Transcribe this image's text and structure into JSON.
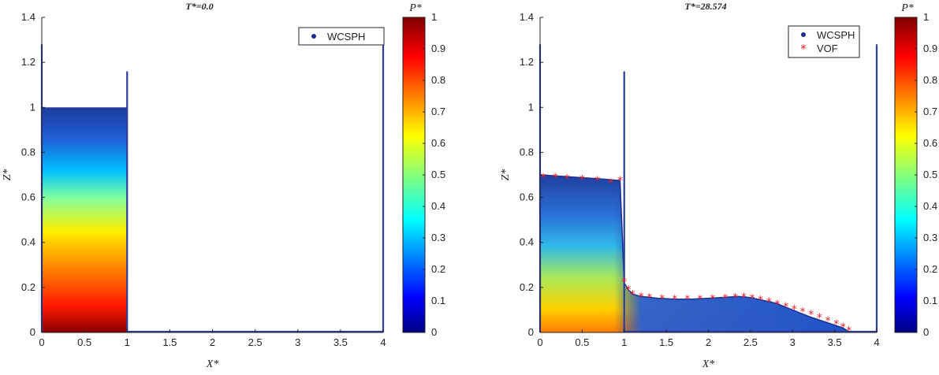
{
  "chart_data": [
    {
      "type": "scatter",
      "title": "T*=0.0",
      "xlabel": "X*",
      "ylabel": "Z*",
      "xlim": [
        0,
        4
      ],
      "ylim": [
        0,
        1.4
      ],
      "xticks": [
        "0",
        "0.5",
        "1",
        "1.5",
        "2",
        "2.5",
        "3",
        "3.5",
        "4"
      ],
      "yticks": [
        "0",
        "0.2",
        "0.4",
        "0.6",
        "0.8",
        "1",
        "1.2",
        "1.4"
      ],
      "grid": false,
      "legend_position": "top-right",
      "legend": [
        "WCSPH"
      ],
      "colorbar": {
        "label": "P*",
        "range": [
          0,
          1
        ],
        "ticks": [
          "0",
          "0.1",
          "0.2",
          "0.3",
          "0.4",
          "0.5",
          "0.6",
          "0.7",
          "0.8",
          "0.9",
          "1"
        ],
        "colormap": "jet"
      },
      "walls": [
        {
          "x": 0,
          "z": [
            0,
            1.28
          ]
        },
        {
          "x": 1,
          "z": [
            0,
            1.16
          ]
        },
        {
          "x": 4,
          "z": [
            0,
            1.28
          ]
        }
      ],
      "fluid": {
        "x": [
          0,
          1
        ],
        "height": 1.0,
        "pressure_field": "hydrostatic"
      }
    },
    {
      "type": "scatter",
      "title": "T*=28.574",
      "xlabel": "X*",
      "ylabel": "Z*",
      "xlim": [
        0,
        4
      ],
      "ylim": [
        0,
        1.4
      ],
      "xticks": [
        "0",
        "0.5",
        "1",
        "1.5",
        "2",
        "2.5",
        "3",
        "3.5",
        "4"
      ],
      "yticks": [
        "0",
        "0.2",
        "0.4",
        "0.6",
        "0.8",
        "1",
        "1.2",
        "1.4"
      ],
      "grid": false,
      "legend_position": "top-right",
      "legend": [
        "WCSPH",
        "VOF"
      ],
      "colorbar": {
        "label": "P*",
        "range": [
          0,
          1
        ],
        "ticks": [
          "0",
          "0.1",
          "0.2",
          "0.3",
          "0.4",
          "0.5",
          "0.6",
          "0.7",
          "0.8",
          "0.9",
          "1"
        ],
        "colormap": "jet"
      },
      "walls": [
        {
          "x": 0,
          "z": [
            0,
            1.28
          ]
        },
        {
          "x": 1,
          "z": [
            0,
            1.16
          ]
        },
        {
          "x": 4,
          "z": [
            0,
            1.28
          ]
        }
      ],
      "free_surface": [
        [
          0,
          0.7
        ],
        [
          0.2,
          0.695
        ],
        [
          0.4,
          0.69
        ],
        [
          0.6,
          0.685
        ],
        [
          0.8,
          0.68
        ],
        [
          0.95,
          0.675
        ],
        [
          1.0,
          0.22
        ],
        [
          1.05,
          0.19
        ],
        [
          1.1,
          0.17
        ],
        [
          1.2,
          0.16
        ],
        [
          1.4,
          0.152
        ],
        [
          1.6,
          0.148
        ],
        [
          1.8,
          0.148
        ],
        [
          2.0,
          0.152
        ],
        [
          2.2,
          0.156
        ],
        [
          2.35,
          0.16
        ],
        [
          2.5,
          0.155
        ],
        [
          2.8,
          0.13
        ],
        [
          3.0,
          0.1
        ],
        [
          3.2,
          0.07
        ],
        [
          3.4,
          0.045
        ],
        [
          3.6,
          0.02
        ],
        [
          3.68,
          0.0
        ]
      ],
      "vof": [
        [
          0.04,
          0.69
        ],
        [
          0.18,
          0.69
        ],
        [
          0.32,
          0.685
        ],
        [
          0.5,
          0.68
        ],
        [
          0.68,
          0.675
        ],
        [
          0.84,
          0.665
        ],
        [
          0.95,
          0.675
        ],
        [
          1.0,
          0.225
        ],
        [
          1.05,
          0.19
        ],
        [
          1.1,
          0.17
        ],
        [
          1.2,
          0.16
        ],
        [
          1.3,
          0.155
        ],
        [
          1.45,
          0.15
        ],
        [
          1.6,
          0.148
        ],
        [
          1.75,
          0.148
        ],
        [
          1.9,
          0.148
        ],
        [
          2.05,
          0.15
        ],
        [
          2.2,
          0.152
        ],
        [
          2.32,
          0.156
        ],
        [
          2.42,
          0.158
        ],
        [
          2.52,
          0.152
        ],
        [
          2.62,
          0.145
        ],
        [
          2.72,
          0.136
        ],
        [
          2.82,
          0.126
        ],
        [
          2.92,
          0.116
        ],
        [
          3.02,
          0.104
        ],
        [
          3.12,
          0.092
        ],
        [
          3.22,
          0.08
        ],
        [
          3.32,
          0.066
        ],
        [
          3.42,
          0.052
        ],
        [
          3.52,
          0.038
        ],
        [
          3.6,
          0.024
        ],
        [
          3.67,
          0.008
        ]
      ]
    }
  ]
}
